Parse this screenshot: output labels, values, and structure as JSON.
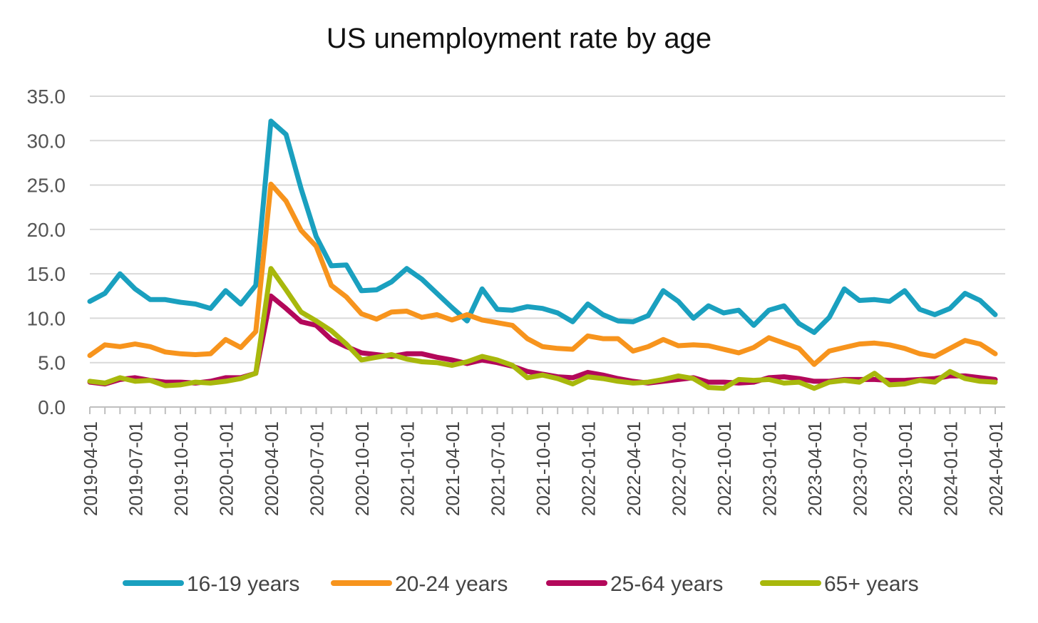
{
  "chart_data": {
    "type": "line",
    "title": "US unemployment rate by age",
    "xlabel": "",
    "ylabel": "",
    "ylim": [
      0,
      35
    ],
    "y_ticks": [
      "0.0",
      "5.0",
      "10.0",
      "15.0",
      "20.0",
      "25.0",
      "30.0",
      "35.0"
    ],
    "x_tick_labels": [
      "2019-04-01",
      "2019-07-01",
      "2019-10-01",
      "2020-01-01",
      "2020-04-01",
      "2020-07-01",
      "2020-10-01",
      "2021-01-01",
      "2021-04-01",
      "2021-07-01",
      "2021-10-01",
      "2022-01-01",
      "2022-04-01",
      "2022-07-01",
      "2022-10-01",
      "2023-01-01",
      "2023-04-01",
      "2023-07-01",
      "2023-10-01",
      "2024-01-01",
      "2024-04-01"
    ],
    "x_start": "2019-04-01",
    "x_end": "2024-04-01",
    "x_frequency": "monthly",
    "grid": "horizontal",
    "legend_position": "bottom",
    "series": [
      {
        "name": "16-19 years",
        "color": "#1aa0bf",
        "values": [
          11.9,
          12.8,
          15.0,
          13.3,
          12.1,
          12.1,
          11.8,
          11.6,
          11.1,
          13.1,
          11.6,
          13.7,
          32.2,
          30.7,
          24.6,
          19.2,
          15.9,
          16.0,
          13.1,
          13.2,
          14.1,
          15.6,
          14.4,
          12.8,
          11.2,
          9.7,
          13.3,
          11.0,
          10.9,
          11.3,
          11.1,
          10.6,
          9.6,
          11.6,
          10.4,
          9.7,
          9.6,
          10.3,
          13.1,
          11.9,
          10.0,
          11.4,
          10.6,
          10.9,
          9.2,
          10.9,
          11.4,
          9.4,
          8.4,
          10.1,
          13.3,
          12.0,
          12.1,
          11.9,
          13.1,
          11.0,
          10.4,
          11.1,
          12.8,
          12.0,
          10.4
        ]
      },
      {
        "name": "20-24 years",
        "color": "#f7941d",
        "values": [
          5.8,
          7.0,
          6.8,
          7.1,
          6.8,
          6.2,
          6.0,
          5.9,
          6.0,
          7.6,
          6.7,
          8.5,
          25.1,
          23.2,
          19.9,
          18.1,
          13.7,
          12.4,
          10.5,
          9.9,
          10.7,
          10.8,
          10.1,
          10.4,
          9.8,
          10.4,
          9.8,
          9.5,
          9.2,
          7.7,
          6.8,
          6.6,
          6.5,
          8.0,
          7.7,
          7.7,
          6.3,
          6.8,
          7.6,
          6.9,
          7.0,
          6.9,
          6.5,
          6.1,
          6.7,
          7.8,
          7.2,
          6.6,
          4.8,
          6.3,
          6.7,
          7.1,
          7.2,
          7.0,
          6.6,
          6.0,
          5.7,
          6.6,
          7.5,
          7.1,
          6.0
        ]
      },
      {
        "name": "25-64 years",
        "color": "#b3085a",
        "values": [
          2.8,
          2.6,
          3.1,
          3.3,
          3.0,
          2.8,
          2.8,
          2.7,
          2.9,
          3.3,
          3.3,
          3.8,
          12.5,
          11.1,
          9.6,
          9.2,
          7.6,
          6.8,
          6.1,
          5.9,
          5.7,
          6.0,
          6.0,
          5.6,
          5.3,
          4.9,
          5.3,
          5.0,
          4.6,
          4.0,
          3.7,
          3.4,
          3.3,
          3.9,
          3.6,
          3.2,
          2.9,
          2.7,
          2.9,
          3.1,
          3.3,
          2.8,
          2.8,
          2.7,
          2.8,
          3.3,
          3.4,
          3.2,
          2.9,
          2.9,
          3.1,
          3.1,
          3.1,
          3.0,
          3.0,
          3.1,
          3.2,
          3.5,
          3.5,
          3.3,
          3.1
        ]
      },
      {
        "name": "65+ years",
        "color": "#a8b80c",
        "values": [
          2.9,
          2.7,
          3.3,
          2.9,
          3.0,
          2.4,
          2.5,
          2.8,
          2.7,
          2.9,
          3.2,
          3.8,
          15.6,
          13.2,
          10.7,
          9.7,
          8.6,
          7.1,
          5.3,
          5.6,
          5.9,
          5.4,
          5.1,
          5.0,
          4.7,
          5.1,
          5.7,
          5.3,
          4.7,
          3.3,
          3.6,
          3.2,
          2.6,
          3.4,
          3.2,
          2.9,
          2.7,
          2.8,
          3.1,
          3.5,
          3.2,
          2.2,
          2.1,
          3.1,
          3.0,
          3.1,
          2.7,
          2.8,
          2.1,
          2.8,
          3.0,
          2.8,
          3.8,
          2.5,
          2.6,
          3.0,
          2.8,
          4.0,
          3.2,
          2.9,
          2.8
        ]
      }
    ]
  }
}
